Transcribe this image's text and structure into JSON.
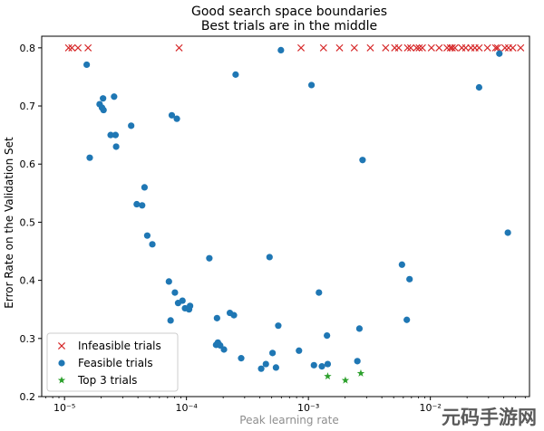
{
  "chart_data": {
    "type": "scatter",
    "title": "Good search space boundaries",
    "subtitle": "Best trials are in the middle",
    "xlabel": "Peak learning rate",
    "ylabel": "Error Rate on the Validation Set",
    "xscale": "log",
    "xlim": [
      6.5e-06,
      0.065
    ],
    "ylim": [
      0.2,
      0.82
    ],
    "x_ticks": [
      {
        "value": 1e-05,
        "label": "10⁻⁵"
      },
      {
        "value": 0.0001,
        "label": "10⁻⁴"
      },
      {
        "value": 0.001,
        "label": "10⁻³"
      },
      {
        "value": 0.01,
        "label": "10⁻²"
      }
    ],
    "y_ticks": [
      {
        "value": 0.2,
        "label": "0.2"
      },
      {
        "value": 0.3,
        "label": "0.3"
      },
      {
        "value": 0.4,
        "label": "0.4"
      },
      {
        "value": 0.5,
        "label": "0.5"
      },
      {
        "value": 0.6,
        "label": "0.6"
      },
      {
        "value": 0.7,
        "label": "0.7"
      },
      {
        "value": 0.8,
        "label": "0.8"
      }
    ],
    "legend_position": "lower-left",
    "grid": false,
    "series": [
      {
        "name": "Infeasible trials",
        "marker": "x",
        "color": "#d62728",
        "points": [
          [
            1.08e-05,
            0.8
          ],
          [
            1.15e-05,
            0.8
          ],
          [
            1.29e-05,
            0.8
          ],
          [
            1.56e-05,
            0.8
          ],
          [
            8.7e-05,
            0.8
          ],
          [
            0.00087,
            0.8
          ],
          [
            0.00133,
            0.8
          ],
          [
            0.0018,
            0.8
          ],
          [
            0.00238,
            0.8
          ],
          [
            0.00322,
            0.8
          ],
          [
            0.0043,
            0.8
          ],
          [
            0.0051,
            0.8
          ],
          [
            0.0055,
            0.8
          ],
          [
            0.0065,
            0.8
          ],
          [
            0.0069,
            0.8
          ],
          [
            0.0077,
            0.8
          ],
          [
            0.0081,
            0.8
          ],
          [
            0.0086,
            0.8
          ],
          [
            0.0102,
            0.8
          ],
          [
            0.0118,
            0.8
          ],
          [
            0.0137,
            0.8
          ],
          [
            0.0146,
            0.8
          ],
          [
            0.0151,
            0.8
          ],
          [
            0.0159,
            0.8
          ],
          [
            0.0181,
            0.8
          ],
          [
            0.0195,
            0.8
          ],
          [
            0.0215,
            0.8
          ],
          [
            0.0232,
            0.8
          ],
          [
            0.0251,
            0.8
          ],
          [
            0.0294,
            0.8
          ],
          [
            0.0343,
            0.8
          ],
          [
            0.0356,
            0.8
          ],
          [
            0.0409,
            0.8
          ],
          [
            0.0438,
            0.8
          ],
          [
            0.0474,
            0.8
          ],
          [
            0.055,
            0.8
          ]
        ]
      },
      {
        "name": "Feasible trials",
        "marker": "circle",
        "color": "#1f77b4",
        "points": [
          [
            1.52e-05,
            0.771
          ],
          [
            1.61e-05,
            0.611
          ],
          [
            1.94e-05,
            0.703
          ],
          [
            2.03e-05,
            0.697
          ],
          [
            2.07e-05,
            0.713
          ],
          [
            2.09e-05,
            0.693
          ],
          [
            2.39e-05,
            0.65
          ],
          [
            2.55e-05,
            0.716
          ],
          [
            2.62e-05,
            0.65
          ],
          [
            2.65e-05,
            0.63
          ],
          [
            3.52e-05,
            0.666
          ],
          [
            3.91e-05,
            0.531
          ],
          [
            4.33e-05,
            0.529
          ],
          [
            4.53e-05,
            0.56
          ],
          [
            4.77e-05,
            0.477
          ],
          [
            5.25e-05,
            0.462
          ],
          [
            7.18e-05,
            0.398
          ],
          [
            7.41e-05,
            0.331
          ],
          [
            7.58e-05,
            0.684
          ],
          [
            8.04e-05,
            0.379
          ],
          [
            8.34e-05,
            0.678
          ],
          [
            8.54e-05,
            0.361
          ],
          [
            9.27e-05,
            0.365
          ],
          [
            9.73e-05,
            0.352
          ],
          [
            0.000107,
            0.356
          ],
          [
            0.000105,
            0.35
          ],
          [
            0.000154,
            0.438
          ],
          [
            0.000175,
            0.289
          ],
          [
            0.000178,
            0.335
          ],
          [
            0.000181,
            0.293
          ],
          [
            0.000189,
            0.288
          ],
          [
            0.000203,
            0.281
          ],
          [
            0.000227,
            0.344
          ],
          [
            0.000245,
            0.34
          ],
          [
            0.000253,
            0.754
          ],
          [
            0.000281,
            0.266
          ],
          [
            0.00041,
            0.248
          ],
          [
            0.000448,
            0.256
          ],
          [
            0.00048,
            0.44
          ],
          [
            0.000508,
            0.275
          ],
          [
            0.000542,
            0.25
          ],
          [
            0.000566,
            0.322
          ],
          [
            0.000595,
            0.796
          ],
          [
            0.000837,
            0.279
          ],
          [
            0.00106,
            0.736
          ],
          [
            0.00111,
            0.254
          ],
          [
            0.00122,
            0.379
          ],
          [
            0.00129,
            0.252
          ],
          [
            0.00142,
            0.305
          ],
          [
            0.00144,
            0.256
          ],
          [
            0.00252,
            0.261
          ],
          [
            0.00262,
            0.317
          ],
          [
            0.00278,
            0.607
          ],
          [
            0.00585,
            0.427
          ],
          [
            0.00641,
            0.332
          ],
          [
            0.00675,
            0.402
          ],
          [
            0.0251,
            0.732
          ],
          [
            0.0368,
            0.79
          ],
          [
            0.0432,
            0.482
          ]
        ]
      },
      {
        "name": "Top 3 trials",
        "marker": "star",
        "color": "#2ca02c",
        "points": [
          [
            0.00144,
            0.235
          ],
          [
            0.00201,
            0.228
          ],
          [
            0.00269,
            0.24
          ]
        ]
      }
    ]
  },
  "watermark": "元码手游网"
}
